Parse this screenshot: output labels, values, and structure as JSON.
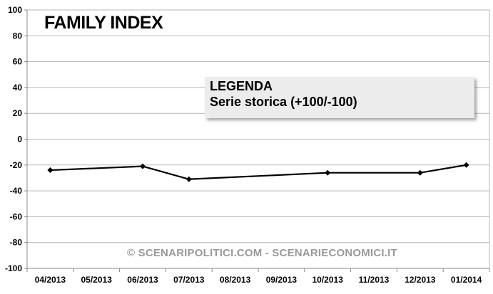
{
  "chart_data": {
    "type": "line",
    "title": "FAMILY INDEX",
    "categories": [
      "04/2013",
      "05/2013",
      "06/2013",
      "07/2013",
      "08/2013",
      "09/2013",
      "10/2013",
      "11/2013",
      "12/2013",
      "01/2014"
    ],
    "series": [
      {
        "name": "Serie storica (+100/-100)",
        "values": [
          -24,
          null,
          -21,
          -31,
          null,
          null,
          -26,
          null,
          -26,
          -20
        ],
        "color": "#000000"
      }
    ],
    "ylim": [
      -100,
      100
    ],
    "yticks": [
      100,
      80,
      60,
      40,
      20,
      0,
      -20,
      -40,
      -60,
      -80,
      -100
    ],
    "grid": true,
    "legend": {
      "title": "LEGENDA",
      "placement": "top-right"
    },
    "annotation": "© SCENARIPOLITICI.COM - SCENARIECONOMICI.IT"
  }
}
